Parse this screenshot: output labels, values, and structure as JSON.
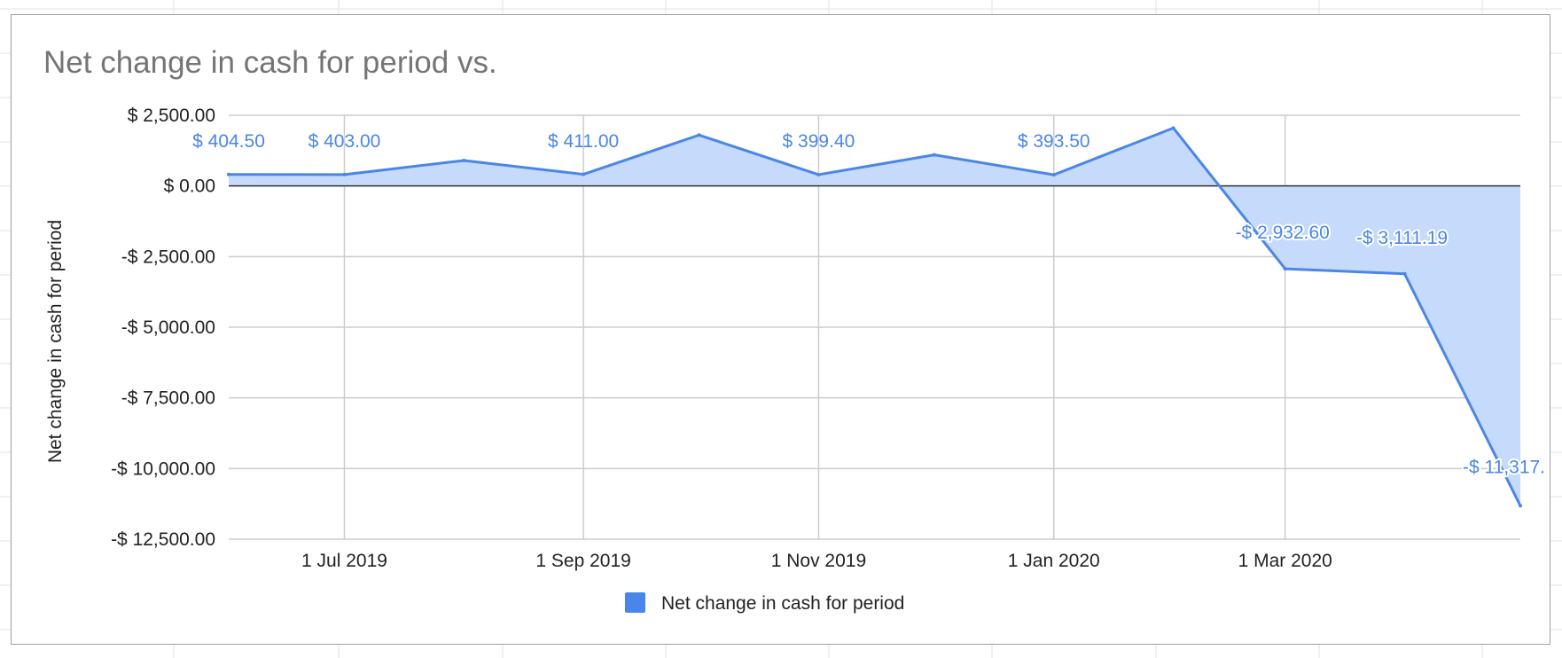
{
  "chart_title": "Net change in cash for period vs.",
  "colors": {
    "series": "#4a86e8",
    "fill": "#c6dafc",
    "grid": "#cccccc",
    "zero": "#333333"
  },
  "chart_data": {
    "type": "area",
    "title": "Net change in cash for period vs.",
    "xlabel": "",
    "ylabel": "Net change in cash for period",
    "ylim": [
      -12500,
      2500
    ],
    "yticks": [
      {
        "value": 2500,
        "label": "$ 2,500.00"
      },
      {
        "value": 0,
        "label": "$ 0.00"
      },
      {
        "value": -2500,
        "label": "-$ 2,500.00"
      },
      {
        "value": -5000,
        "label": "-$ 5,000.00"
      },
      {
        "value": -7500,
        "label": "-$ 7,500.00"
      },
      {
        "value": -10000,
        "label": "-$ 10,000.00"
      },
      {
        "value": -12500,
        "label": "-$ 12,500.00"
      }
    ],
    "xlim": [
      "2019-06-01",
      "2020-05-01"
    ],
    "xticks": [
      {
        "date": "2019-07-01",
        "label": "1 Jul 2019"
      },
      {
        "date": "2019-09-01",
        "label": "1 Sep 2019"
      },
      {
        "date": "2019-11-01",
        "label": "1 Nov 2019"
      },
      {
        "date": "2020-01-01",
        "label": "1 Jan 2020"
      },
      {
        "date": "2020-03-01",
        "label": "1 Mar 2020"
      }
    ],
    "legend_position": "bottom",
    "grid": true,
    "series": [
      {
        "name": "Net change in cash for period",
        "points": [
          {
            "x": "2019-06-01",
            "y": 404.5,
            "label": "$ 404.50"
          },
          {
            "x": "2019-07-01",
            "y": 403.0,
            "label": "$ 403.00"
          },
          {
            "x": "2019-08-01",
            "y": 900
          },
          {
            "x": "2019-09-01",
            "y": 411.0,
            "label": "$ 411.00"
          },
          {
            "x": "2019-10-01",
            "y": 1800
          },
          {
            "x": "2019-11-01",
            "y": 399.4,
            "label": "$ 399.40"
          },
          {
            "x": "2019-12-01",
            "y": 1100
          },
          {
            "x": "2020-01-01",
            "y": 393.5,
            "label": "$ 393.50"
          },
          {
            "x": "2020-02-01",
            "y": 2050
          },
          {
            "x": "2020-03-01",
            "y": -2932.6,
            "label": "-$ 2,932.60"
          },
          {
            "x": "2020-04-01",
            "y": -3111.19,
            "label": "-$ 3,111.19"
          },
          {
            "x": "2020-05-01",
            "y": -11317.0,
            "label": "-$ 11,317."
          }
        ]
      }
    ]
  }
}
